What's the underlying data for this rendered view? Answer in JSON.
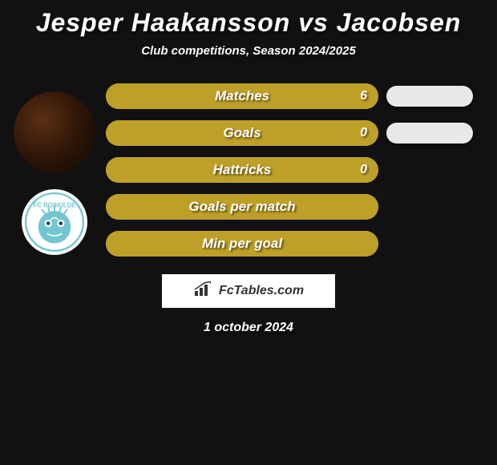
{
  "title": "Jesper Haakansson vs Jacobsen",
  "subtitle": "Club competitions, Season 2024/2025",
  "club": {
    "name": "FC Roskilde",
    "badge_bg": "#ffffff",
    "badge_ring": "#73c6d1",
    "badge_text_color": "#73c6d1"
  },
  "colors": {
    "page_bg": "#111111",
    "bar_bg": "#a38933",
    "bar_fill": "#be9f28",
    "pill_bg": "#e9e9e9",
    "text": "#ffffff"
  },
  "stats": [
    {
      "label": "Matches",
      "value": "6",
      "fill_pct": 100,
      "pill": true
    },
    {
      "label": "Goals",
      "value": "0",
      "fill_pct": 100,
      "pill": true
    },
    {
      "label": "Hattricks",
      "value": "0",
      "fill_pct": 100,
      "pill": false
    },
    {
      "label": "Goals per match",
      "value": "",
      "fill_pct": 100,
      "pill": false
    },
    {
      "label": "Min per goal",
      "value": "",
      "fill_pct": 100,
      "pill": false
    }
  ],
  "attribution": "FcTables.com",
  "date": "1 october 2024"
}
